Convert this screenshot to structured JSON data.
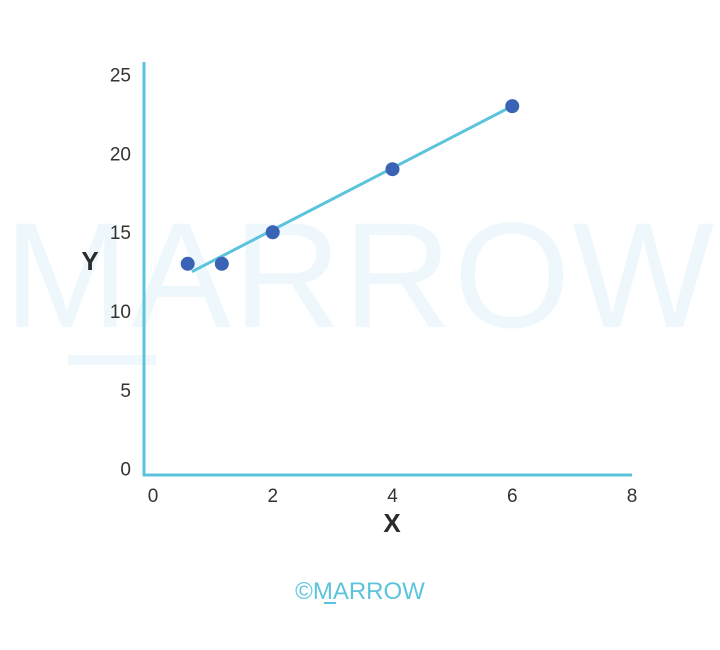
{
  "chart_data": {
    "type": "scatter",
    "points": [
      {
        "x": 0.58,
        "y": 13
      },
      {
        "x": 1.15,
        "y": 13
      },
      {
        "x": 2.0,
        "y": 15
      },
      {
        "x": 4.0,
        "y": 19
      },
      {
        "x": 6.0,
        "y": 23
      }
    ],
    "trendline": {
      "x": [
        0.65,
        6.0
      ],
      "y": [
        12.5,
        23.0
      ]
    },
    "xlabel": "X",
    "ylabel": "Y",
    "xlim": [
      -0.15,
      8
    ],
    "ylim": [
      -0.4,
      25.8
    ],
    "xticks": [
      0,
      2,
      4,
      6,
      8
    ],
    "yticks": [
      0,
      5,
      10,
      15,
      20,
      25
    ],
    "grid": false,
    "legend": "none",
    "colors": {
      "axis": "#5bc4dc",
      "line": "#5bc4dc",
      "points": "#3a62b5"
    }
  },
  "watermark": "MARROW",
  "copyright": "©MARROW"
}
